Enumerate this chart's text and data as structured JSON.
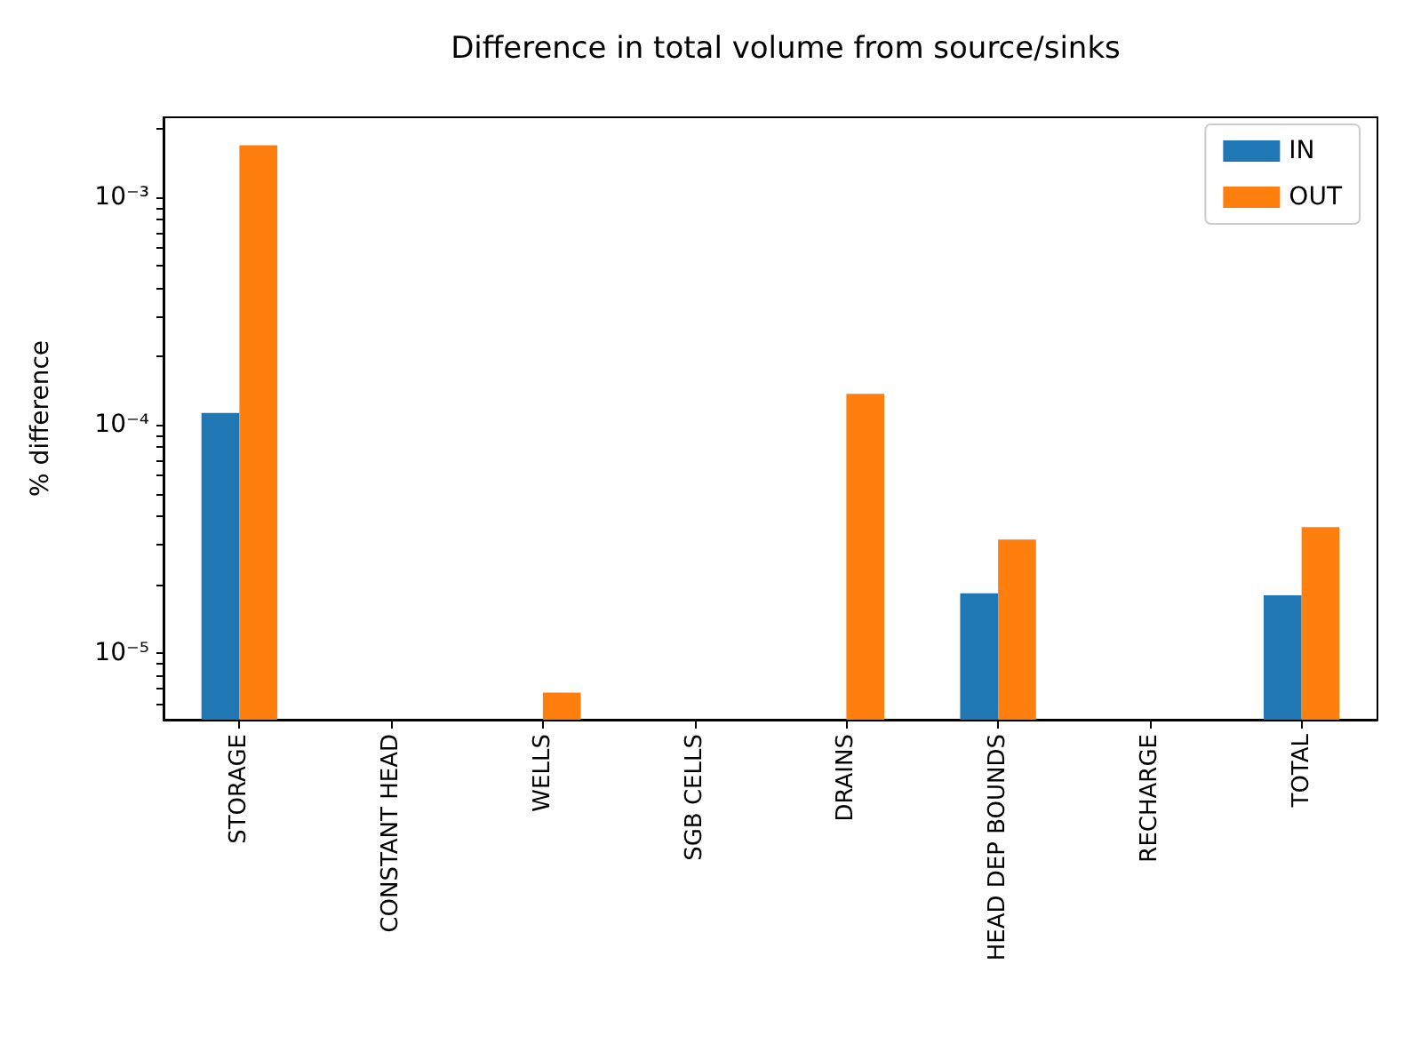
{
  "chart_data": {
    "type": "bar",
    "title": "Difference in total volume from source/sinks",
    "ylabel": "% difference",
    "categories": [
      "STORAGE",
      "CONSTANT HEAD",
      "WELLS",
      "SGB CELLS",
      "DRAINS",
      "HEAD DEP BOUNDS",
      "RECHARGE",
      "TOTAL"
    ],
    "series": [
      {
        "name": "IN",
        "color": "#1f77b4",
        "values": [
          0.000113,
          null,
          null,
          null,
          null,
          1.83e-05,
          null,
          1.79e-05
        ]
      },
      {
        "name": "OUT",
        "color": "#ff7f0e",
        "values": [
          0.00169,
          null,
          6.7e-06,
          null,
          0.000137,
          3.15e-05,
          null,
          3.57e-05
        ]
      }
    ],
    "log": "y",
    "ylim": [
      5.1e-06,
      0.00224
    ],
    "yticks": [
      {
        "value": 6e-06,
        "label": null
      },
      {
        "value": 7e-06,
        "label": null
      },
      {
        "value": 8e-06,
        "label": null
      },
      {
        "value": 9e-06,
        "label": null
      },
      {
        "value": 1e-05,
        "label": "10⁻⁵"
      },
      {
        "value": 2e-05,
        "label": null
      },
      {
        "value": 3e-05,
        "label": null
      },
      {
        "value": 4e-05,
        "label": null
      },
      {
        "value": 5e-05,
        "label": null
      },
      {
        "value": 6e-05,
        "label": null
      },
      {
        "value": 7e-05,
        "label": null
      },
      {
        "value": 8e-05,
        "label": null
      },
      {
        "value": 9e-05,
        "label": null
      },
      {
        "value": 0.0001,
        "label": "10⁻⁴"
      },
      {
        "value": 0.0002,
        "label": null
      },
      {
        "value": 0.0003,
        "label": null
      },
      {
        "value": 0.0004,
        "label": null
      },
      {
        "value": 0.0005,
        "label": null
      },
      {
        "value": 0.0006,
        "label": null
      },
      {
        "value": 0.0007,
        "label": null
      },
      {
        "value": 0.0008,
        "label": null
      },
      {
        "value": 0.0009,
        "label": null
      },
      {
        "value": 0.001,
        "label": "10⁻³"
      },
      {
        "value": 0.002,
        "label": null
      }
    ],
    "grid": false,
    "legend": "top right"
  }
}
